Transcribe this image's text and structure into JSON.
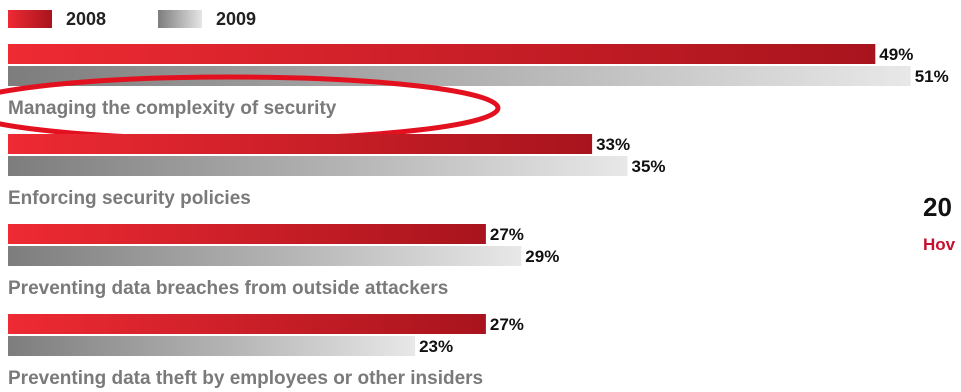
{
  "legend": {
    "items": [
      {
        "label": "2008",
        "color": "#d91f2b"
      },
      {
        "label": "2009",
        "color": "#8a8a8a"
      }
    ]
  },
  "side_text": {
    "title": "20",
    "subtitle": "Hov"
  },
  "chart_data": {
    "type": "bar",
    "orientation": "horizontal",
    "categories": [
      "Managing the complexity of security",
      "Enforcing security policies",
      "Preventing data breaches from outside attackers",
      "Preventing data theft by employees or other insiders"
    ],
    "series": [
      {
        "name": "2008",
        "values": [
          49,
          33,
          27,
          27
        ],
        "labels": [
          "49%",
          "33%",
          "27%",
          "27%"
        ],
        "color": "#d91f2b"
      },
      {
        "name": "2009",
        "values": [
          51,
          35,
          29,
          23
        ],
        "labels": [
          "51%",
          "35%",
          "29%",
          "23%"
        ],
        "color": "#8a8a8a"
      }
    ],
    "value_unit": "%",
    "grid": false,
    "legend_position": "top-left",
    "highlighted_category": "Managing the complexity of security",
    "highlight_color": "#e3101f"
  }
}
